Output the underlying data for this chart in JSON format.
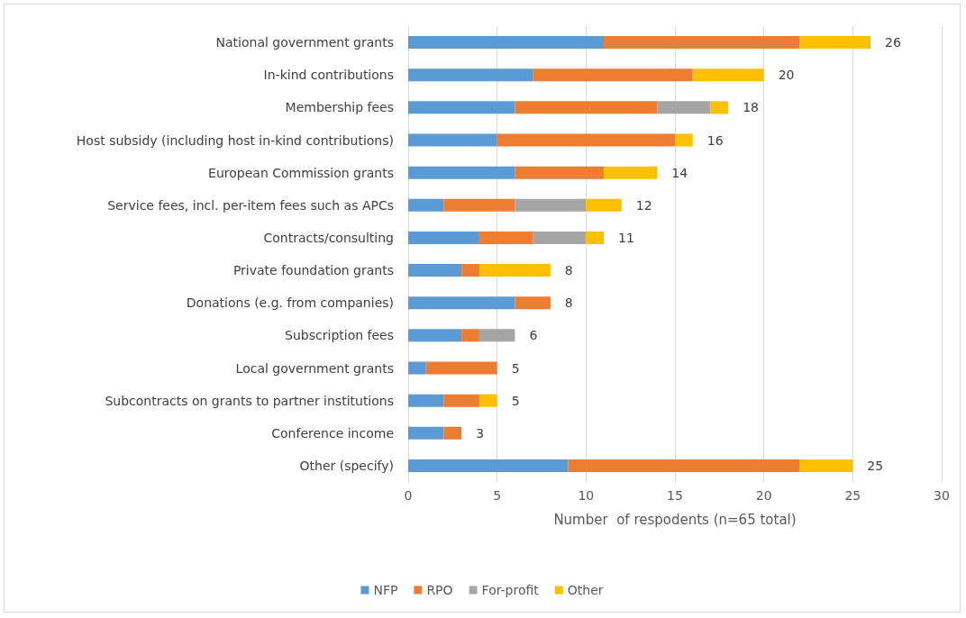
{
  "chart_data": {
    "type": "bar",
    "orientation": "horizontal",
    "stacked": true,
    "xlabel": "Number  of respodents (n=65 total)",
    "categories": [
      "National government grants",
      "In-kind contributions",
      "Membership fees",
      "Host subsidy (including host in-kind contributions)",
      "European Commission grants",
      "Service fees, incl. per-item fees such as APCs",
      "Contracts/consulting",
      "Private foundation grants",
      "Donations (e.g. from companies)",
      "Subscription fees",
      "Local government grants",
      "Subcontracts on grants to partner institutions",
      "Conference income",
      "Other (specify)"
    ],
    "series": [
      {
        "name": "NFP",
        "color": "#5b9bd5",
        "values": [
          11,
          7,
          6,
          5,
          6,
          2,
          4,
          3,
          6,
          3,
          1,
          2,
          2,
          9
        ]
      },
      {
        "name": "RPO",
        "color": "#ed7d31",
        "values": [
          11,
          9,
          8,
          10,
          5,
          4,
          3,
          1,
          2,
          1,
          4,
          2,
          1,
          13
        ]
      },
      {
        "name": "For-profit",
        "color": "#a5a5a5",
        "values": [
          0,
          0,
          3,
          0,
          0,
          4,
          3,
          0,
          0,
          2,
          0,
          0,
          0,
          0
        ]
      },
      {
        "name": "Other",
        "color": "#ffc000",
        "values": [
          4,
          4,
          1,
          1,
          3,
          2,
          1,
          4,
          0,
          0,
          0,
          1,
          0,
          3
        ]
      }
    ],
    "totals": [
      "26",
      "20",
      "18",
      "16",
      "14",
      "12",
      "11",
      "8",
      "8",
      "6",
      "5",
      "5",
      "3",
      "25"
    ],
    "xlim": [
      0,
      30
    ],
    "xticks": [
      0,
      5,
      10,
      15,
      20,
      25,
      30
    ],
    "grid": "x",
    "legend": "bottom"
  }
}
